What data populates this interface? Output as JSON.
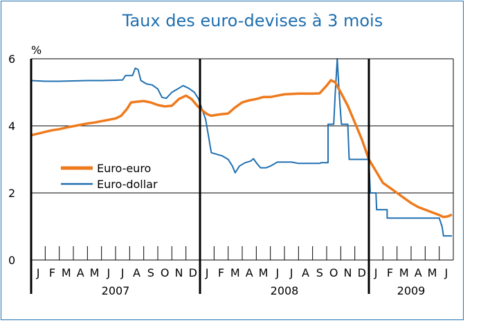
{
  "chart_data": {
    "type": "line",
    "title": "Taux des euro-devises à 3 mois",
    "ylabel": "%",
    "ylim": [
      0,
      6
    ],
    "yticks": [
      "0",
      "2",
      "4",
      "6"
    ],
    "grid": true,
    "legend_position": "left-middle",
    "colors": {
      "title": "#1f6fb0",
      "Euro-euro": "#ee7a1c",
      "Euro-dollar": "#1f6fb0"
    },
    "month_labels": [
      "J",
      "F",
      "M",
      "A",
      "M",
      "J",
      "J",
      "A",
      "S",
      "O",
      "N",
      "D",
      "J",
      "F",
      "M",
      "A",
      "M",
      "J",
      "J",
      "A",
      "S",
      "O",
      "N",
      "D",
      "J",
      "F",
      "M",
      "A",
      "M",
      "J"
    ],
    "year_labels": [
      "2007",
      "2008",
      "2009"
    ],
    "series": [
      {
        "name": "Euro-euro",
        "points": [
          [
            0,
            3.72
          ],
          [
            0.5,
            3.77
          ],
          [
            1,
            3.82
          ],
          [
            1.5,
            3.87
          ],
          [
            2,
            3.9
          ],
          [
            2.5,
            3.95
          ],
          [
            3,
            3.99
          ],
          [
            3.5,
            4.03
          ],
          [
            4,
            4.07
          ],
          [
            4.5,
            4.1
          ],
          [
            5,
            4.14
          ],
          [
            5.5,
            4.18
          ],
          [
            6,
            4.22
          ],
          [
            6.4,
            4.3
          ],
          [
            6.8,
            4.5
          ],
          [
            7.1,
            4.7
          ],
          [
            7.5,
            4.72
          ],
          [
            8,
            4.74
          ],
          [
            8.5,
            4.7
          ],
          [
            9,
            4.62
          ],
          [
            9.5,
            4.58
          ],
          [
            10,
            4.6
          ],
          [
            10.5,
            4.8
          ],
          [
            11,
            4.9
          ],
          [
            11.4,
            4.8
          ],
          [
            11.8,
            4.6
          ],
          [
            12.2,
            4.45
          ],
          [
            12.5,
            4.35
          ],
          [
            12.8,
            4.3
          ],
          [
            13.2,
            4.33
          ],
          [
            13.6,
            4.35
          ],
          [
            14,
            4.37
          ],
          [
            14.5,
            4.55
          ],
          [
            15,
            4.7
          ],
          [
            15.5,
            4.76
          ],
          [
            16,
            4.8
          ],
          [
            16.5,
            4.86
          ],
          [
            17,
            4.86
          ],
          [
            17.5,
            4.9
          ],
          [
            18,
            4.94
          ],
          [
            18.5,
            4.95
          ],
          [
            19,
            4.96
          ],
          [
            19.5,
            4.96
          ],
          [
            20,
            4.96
          ],
          [
            20.5,
            4.97
          ],
          [
            21,
            5.2
          ],
          [
            21.3,
            5.36
          ],
          [
            21.6,
            5.3
          ],
          [
            22,
            5.0
          ],
          [
            22.5,
            4.6
          ],
          [
            23,
            4.1
          ],
          [
            23.5,
            3.6
          ],
          [
            24,
            3.0
          ],
          [
            24.5,
            2.65
          ],
          [
            25,
            2.3
          ],
          [
            25.5,
            2.15
          ],
          [
            26,
            2.0
          ],
          [
            26.5,
            1.85
          ],
          [
            27,
            1.7
          ],
          [
            27.5,
            1.58
          ],
          [
            28,
            1.5
          ],
          [
            28.5,
            1.42
          ],
          [
            29,
            1.34
          ],
          [
            29.3,
            1.28
          ],
          [
            29.6,
            1.3
          ],
          [
            29.9,
            1.35
          ]
        ]
      },
      {
        "name": "Euro-dollar",
        "points": [
          [
            0,
            5.35
          ],
          [
            1,
            5.33
          ],
          [
            2,
            5.33
          ],
          [
            3,
            5.34
          ],
          [
            4,
            5.35
          ],
          [
            5,
            5.35
          ],
          [
            6,
            5.36
          ],
          [
            6.5,
            5.37
          ],
          [
            6.7,
            5.5
          ],
          [
            7.2,
            5.5
          ],
          [
            7.4,
            5.72
          ],
          [
            7.6,
            5.68
          ],
          [
            7.8,
            5.35
          ],
          [
            8.2,
            5.25
          ],
          [
            8.6,
            5.22
          ],
          [
            9,
            5.1
          ],
          [
            9.3,
            4.85
          ],
          [
            9.6,
            4.82
          ],
          [
            10,
            5.0
          ],
          [
            10.4,
            5.1
          ],
          [
            10.8,
            5.2
          ],
          [
            11.2,
            5.12
          ],
          [
            11.6,
            5.0
          ],
          [
            11.9,
            4.8
          ],
          [
            12.1,
            4.55
          ],
          [
            12.4,
            4.2
          ],
          [
            12.6,
            3.7
          ],
          [
            12.8,
            3.2
          ],
          [
            13.2,
            3.15
          ],
          [
            13.6,
            3.1
          ],
          [
            14,
            3.0
          ],
          [
            14.3,
            2.8
          ],
          [
            14.5,
            2.6
          ],
          [
            14.8,
            2.8
          ],
          [
            15.2,
            2.9
          ],
          [
            15.6,
            2.95
          ],
          [
            15.8,
            3.02
          ],
          [
            16,
            2.9
          ],
          [
            16.3,
            2.75
          ],
          [
            16.7,
            2.75
          ],
          [
            17,
            2.8
          ],
          [
            17.5,
            2.92
          ],
          [
            18,
            2.92
          ],
          [
            18.5,
            2.92
          ],
          [
            19,
            2.88
          ],
          [
            19.5,
            2.88
          ],
          [
            20,
            2.88
          ],
          [
            20.5,
            2.88
          ],
          [
            20.6,
            2.9
          ],
          [
            21.1,
            2.9
          ],
          [
            21.1,
            4.05
          ],
          [
            21.5,
            4.05
          ],
          [
            21.6,
            4.9
          ],
          [
            21.75,
            6.0
          ],
          [
            21.9,
            4.9
          ],
          [
            22.05,
            4.05
          ],
          [
            22.5,
            4.05
          ],
          [
            22.6,
            3.0
          ],
          [
            24,
            3.0
          ],
          [
            24.1,
            2.0
          ],
          [
            24.5,
            2.0
          ],
          [
            24.55,
            1.5
          ],
          [
            25,
            1.5
          ],
          [
            25.3,
            1.5
          ],
          [
            25.3,
            1.25
          ],
          [
            29,
            1.25
          ],
          [
            29.2,
            1.0
          ],
          [
            29.3,
            0.72
          ],
          [
            29.9,
            0.72
          ]
        ]
      }
    ]
  }
}
